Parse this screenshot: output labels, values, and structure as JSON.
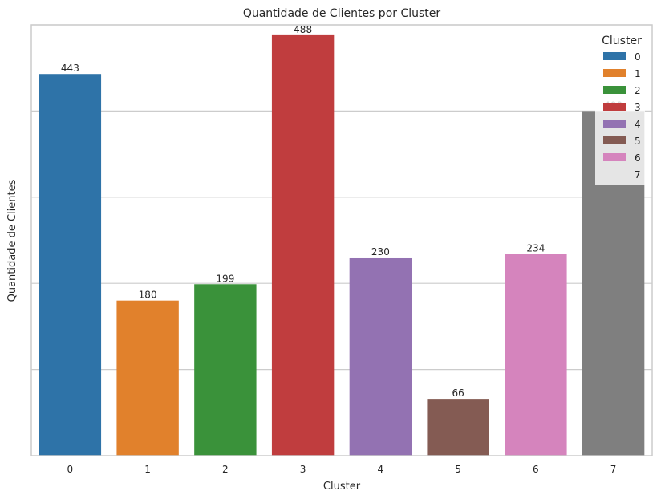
{
  "chart_data": {
    "type": "bar",
    "title": "Quantidade de Clientes por Cluster",
    "xlabel": "Cluster",
    "ylabel": "Quantidade de Clientes",
    "categories": [
      "0",
      "1",
      "2",
      "3",
      "4",
      "5",
      "6",
      "7"
    ],
    "values": [
      443,
      180,
      199,
      488,
      230,
      66,
      234,
      400
    ],
    "data_labels": [
      "443",
      "180",
      "199",
      "488",
      "230",
      "66",
      "234",
      "400"
    ],
    "colors": [
      "#2e73a8",
      "#e1812c",
      "#3a923a",
      "#c03d3e",
      "#9372b2",
      "#845b53",
      "#d584bd",
      "#7f7f7f"
    ],
    "ylim": [
      0,
      500
    ],
    "y_tick_labels_visible": false,
    "grid": "horizontal",
    "legend": {
      "title": "Cluster",
      "placement": "top-right",
      "entries": [
        "0",
        "1",
        "2",
        "3",
        "4",
        "5",
        "6",
        "7"
      ],
      "swatch_colors": [
        "#2e73a8",
        "#e1812c",
        "#3a923a",
        "#c03d3e",
        "#9372b2",
        "#845b53",
        "#d584bd",
        null
      ]
    },
    "background": "#ffffff",
    "grid_color": "#cccccc"
  }
}
